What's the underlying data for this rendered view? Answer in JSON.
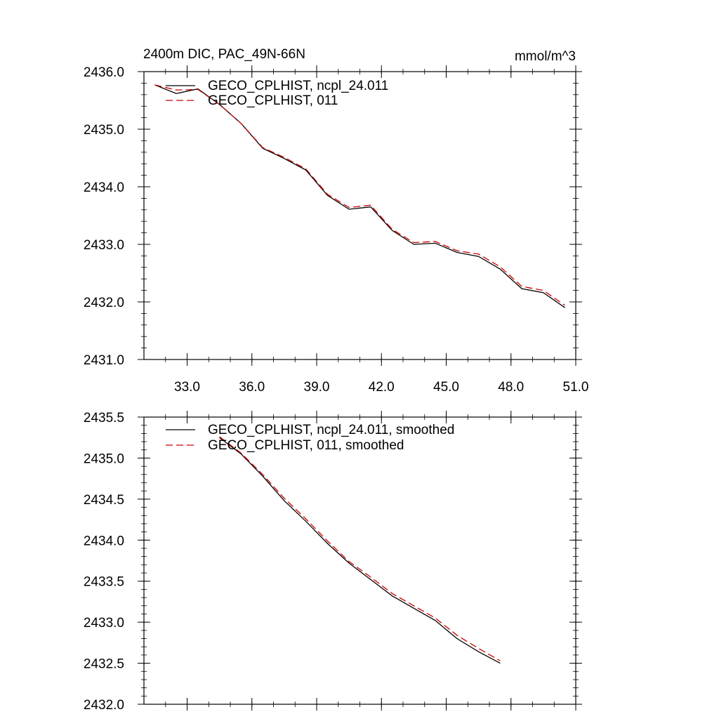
{
  "chart_data": [
    {
      "type": "line",
      "title": "2400m DIC, PAC_49N-66N",
      "units": "mmol/m^3",
      "xlabel": "",
      "ylabel": "",
      "xlim": [
        31,
        51
      ],
      "ylim": [
        2431.0,
        2436.0
      ],
      "xticks": [
        33,
        36,
        39,
        42,
        45,
        48,
        51
      ],
      "xtick_labels": [
        "33.0",
        "36.0",
        "39.0",
        "42.0",
        "45.0",
        "48.0",
        "51.0"
      ],
      "yticks": [
        2431,
        2432,
        2433,
        2434,
        2435,
        2436
      ],
      "ytick_labels": [
        "2431.0",
        "2432.0",
        "2433.0",
        "2434.0",
        "2435.0",
        "2436.0"
      ],
      "legend": "top-left",
      "grid": false,
      "series": [
        {
          "name": "GECO_CPLHIST, ncpl_24.011",
          "color": "#000000",
          "dash": "solid",
          "x": [
            31.5,
            32.5,
            33.5,
            34.5,
            35.5,
            36.5,
            37.5,
            38.5,
            39.5,
            40.5,
            41.5,
            42.5,
            43.5,
            44.5,
            45.5,
            46.5,
            47.5,
            48.5,
            49.5,
            50.5
          ],
          "values": [
            2435.77,
            2435.62,
            2435.7,
            2435.43,
            2435.1,
            2434.67,
            2434.49,
            2434.29,
            2433.85,
            2433.61,
            2433.65,
            2433.24,
            2433.0,
            2433.02,
            2432.86,
            2432.79,
            2432.57,
            2432.23,
            2432.16,
            2431.9
          ]
        },
        {
          "name": "GECO_CPLHIST, 011",
          "color": "#cc0000",
          "dash": "dashed",
          "x": [
            31.5,
            32.5,
            33.5,
            34.5,
            35.5,
            36.5,
            37.5,
            38.5,
            39.5,
            40.5,
            41.5,
            42.5,
            43.5,
            44.5,
            45.5,
            46.5,
            47.5,
            48.5,
            49.5,
            50.5
          ],
          "values": [
            2435.77,
            2435.68,
            2435.69,
            2435.43,
            2435.1,
            2434.68,
            2434.51,
            2434.31,
            2433.87,
            2433.64,
            2433.68,
            2433.26,
            2433.03,
            2433.05,
            2432.89,
            2432.83,
            2432.61,
            2432.27,
            2432.2,
            2431.94
          ]
        }
      ]
    },
    {
      "type": "line",
      "title": "",
      "xlabel": "",
      "ylabel": "",
      "xlim": [
        31,
        51
      ],
      "ylim": [
        2432.0,
        2435.5
      ],
      "xticks": [
        33,
        36,
        39,
        42,
        45,
        48,
        51
      ],
      "xtick_labels": [
        "",
        "",
        "",
        "",
        "",
        "",
        ""
      ],
      "yticks": [
        2432.0,
        2432.5,
        2433.0,
        2433.5,
        2434.0,
        2434.5,
        2435.0,
        2435.5
      ],
      "ytick_labels": [
        "2432.0",
        "2432.5",
        "2433.0",
        "2433.5",
        "2434.0",
        "2434.5",
        "2435.0",
        "2435.5"
      ],
      "legend": "top-left",
      "grid": false,
      "series": [
        {
          "name": "GECO_CPLHIST, ncpl_24.011, smoothed",
          "color": "#000000",
          "dash": "solid",
          "x": [
            34.5,
            35.5,
            36.5,
            37.5,
            38.5,
            39.5,
            40.5,
            41.5,
            42.5,
            43.5,
            44.5,
            45.5,
            46.5,
            47.5
          ],
          "values": [
            2435.25,
            2435.05,
            2434.78,
            2434.48,
            2434.23,
            2433.96,
            2433.72,
            2433.52,
            2433.32,
            2433.17,
            2433.02,
            2432.8,
            2432.64,
            2432.5
          ]
        },
        {
          "name": "GECO_CPLHIST, 011, smoothed",
          "color": "#cc0000",
          "dash": "dashed",
          "x": [
            34.5,
            35.5,
            36.5,
            37.5,
            38.5,
            39.5,
            40.5,
            41.5,
            42.5,
            43.5,
            44.5,
            45.5,
            46.5,
            47.5
          ],
          "values": [
            2435.26,
            2435.06,
            2434.8,
            2434.51,
            2434.26,
            2433.99,
            2433.74,
            2433.55,
            2433.35,
            2433.2,
            2433.05,
            2432.84,
            2432.68,
            2432.53
          ]
        }
      ]
    }
  ]
}
